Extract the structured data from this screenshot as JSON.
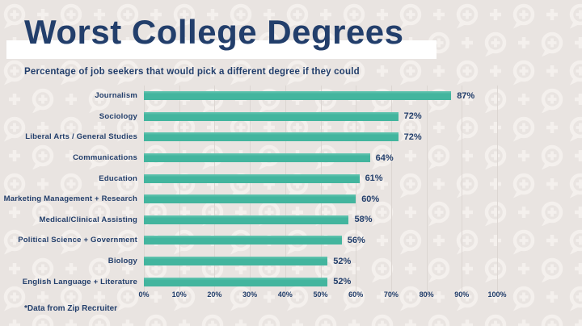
{
  "page": {
    "title": "Worst College Degrees",
    "subtitle": "Percentage of job seekers that would pick a different degree if they could",
    "footnote": "*Data from Zip Recruiter"
  },
  "colors": {
    "background": "#e9e4e1",
    "watermark": "#f4f0ed",
    "bar": "#43b59e",
    "bar_highlight": "#67c6b2",
    "navy": "#223e6b",
    "highlight_band": "#ffffff",
    "gridline": "#dcd6d2"
  },
  "watermark_icon": "speech-bubble-plus-icon",
  "chart_data": {
    "type": "bar",
    "orientation": "horizontal",
    "title": "Worst College Degrees",
    "subtitle": "Percentage of job seekers that would pick a different degree if they could",
    "categories": [
      "Journalism",
      "Sociology",
      "Liberal Arts / General Studies",
      "Communications",
      "Education",
      "Marketing Management + Research",
      "Medical/Clinical Assisting",
      "Political Science + Government",
      "Biology",
      "English Language + Literature"
    ],
    "values": [
      87,
      72,
      72,
      64,
      61,
      60,
      58,
      56,
      52,
      52
    ],
    "value_labels": [
      "87%",
      "72%",
      "72%",
      "64%",
      "61%",
      "60%",
      "58%",
      "56%",
      "52%",
      "52%"
    ],
    "xlim": [
      0,
      100
    ],
    "x_ticks": [
      "0%",
      "10%",
      "20%",
      "30%",
      "40%",
      "50%",
      "60%",
      "70%",
      "80%",
      "90%",
      "100%"
    ],
    "grid": true,
    "legend": false,
    "source": "*Data from Zip Recruiter"
  }
}
